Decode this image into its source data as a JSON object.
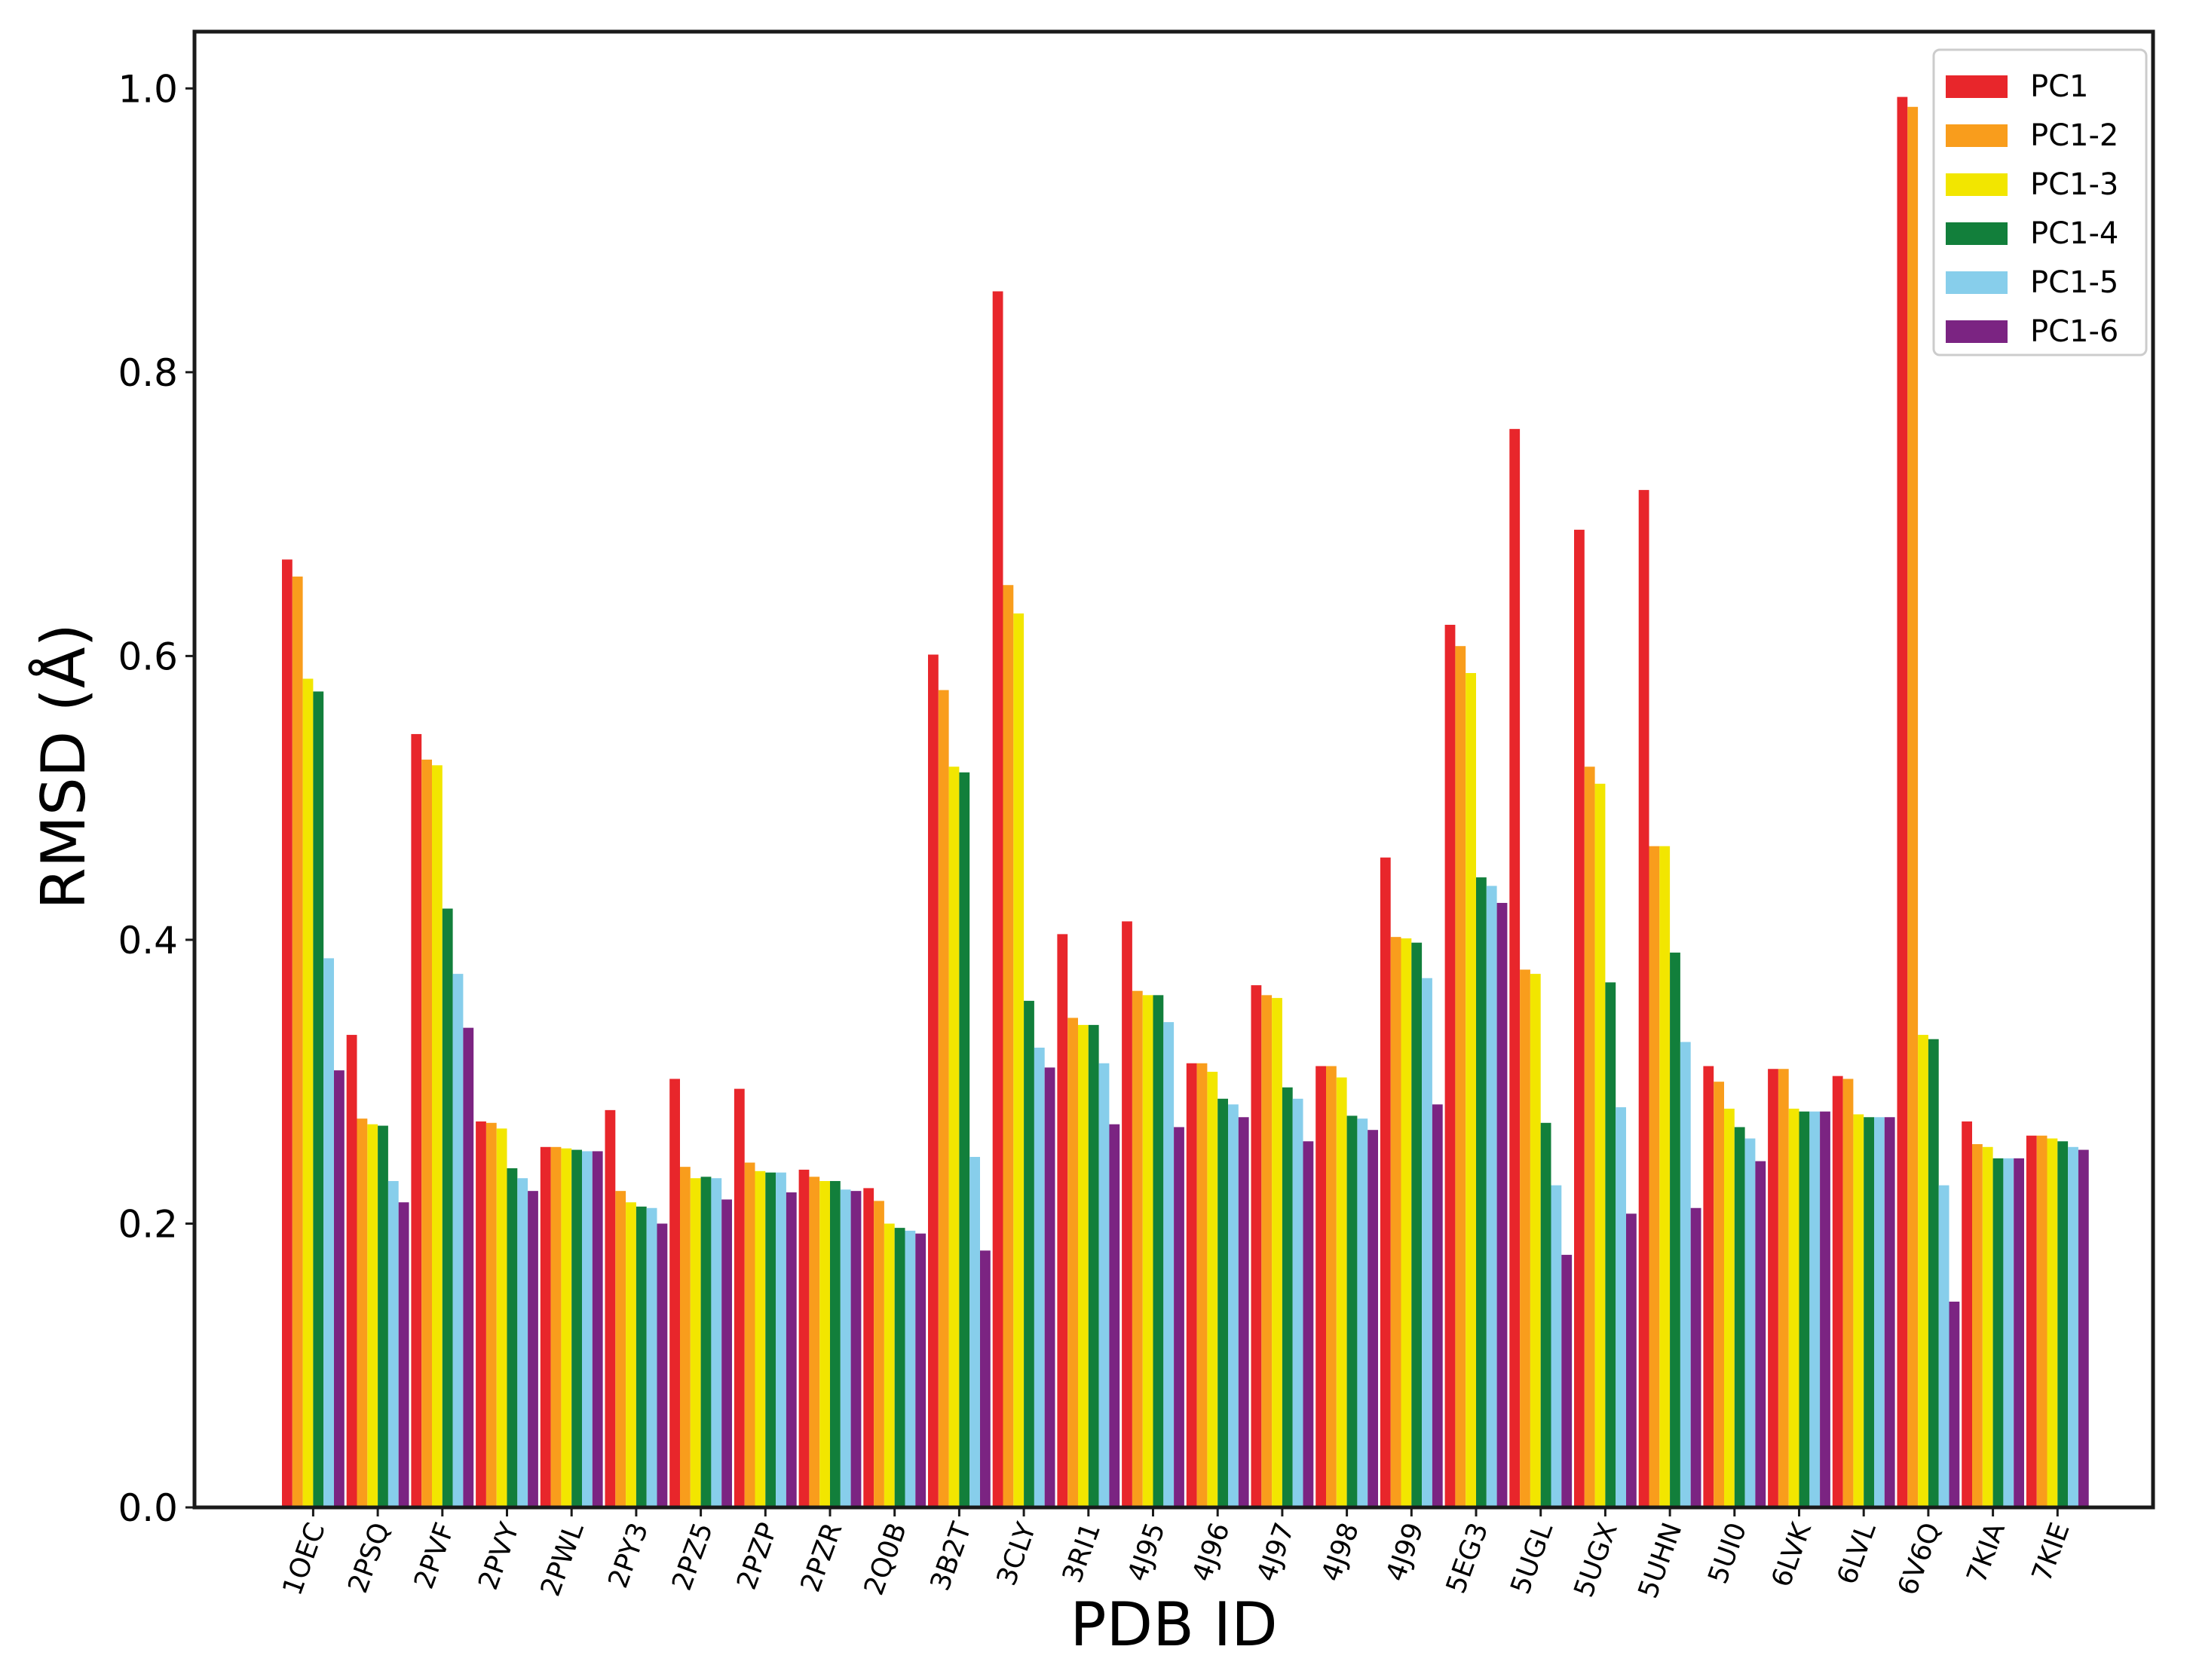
{
  "chart_data": {
    "type": "bar",
    "title": "",
    "xlabel": "PDB ID",
    "ylabel": "RMSD (Å)",
    "ylim": [
      0,
      1.04
    ],
    "yticks": [
      "0.0",
      "0.2",
      "0.4",
      "0.6",
      "0.8",
      "1.0"
    ],
    "legend_position": "top-right",
    "grid": false,
    "categories": [
      "1OEC",
      "2PSQ",
      "2PVF",
      "2PVY",
      "2PWL",
      "2PY3",
      "2PZ5",
      "2PZP",
      "2PZR",
      "2Q0B",
      "3B2T",
      "3CLY",
      "3RI1",
      "4J95",
      "4J96",
      "4J97",
      "4J98",
      "4J99",
      "5EG3",
      "5UGL",
      "5UGX",
      "5UHN",
      "5UI0",
      "6LVK",
      "6LVL",
      "6V6Q",
      "7KIA",
      "7KIE"
    ],
    "series": [
      {
        "name": "PC1",
        "color": "#e8262b",
        "values": [
          0.668,
          0.333,
          0.545,
          0.272,
          0.254,
          0.28,
          0.302,
          0.295,
          0.238,
          0.225,
          0.601,
          0.857,
          0.404,
          0.413,
          0.313,
          0.368,
          0.311,
          0.458,
          0.622,
          0.76,
          0.689,
          0.717,
          0.311,
          0.309,
          0.304,
          0.994,
          0.272,
          0.262
        ]
      },
      {
        "name": "PC1-2",
        "color": "#f99d1c",
        "values": [
          0.656,
          0.274,
          0.527,
          0.271,
          0.254,
          0.223,
          0.24,
          0.243,
          0.233,
          0.216,
          0.576,
          0.65,
          0.345,
          0.364,
          0.313,
          0.361,
          0.311,
          0.402,
          0.607,
          0.379,
          0.522,
          0.466,
          0.3,
          0.309,
          0.302,
          0.987,
          0.256,
          0.262
        ]
      },
      {
        "name": "PC1-3",
        "color": "#f2e600",
        "values": [
          0.584,
          0.27,
          0.523,
          0.267,
          0.253,
          0.215,
          0.232,
          0.237,
          0.23,
          0.2,
          0.522,
          0.63,
          0.34,
          0.361,
          0.307,
          0.359,
          0.303,
          0.401,
          0.588,
          0.376,
          0.51,
          0.466,
          0.281,
          0.281,
          0.277,
          0.333,
          0.254,
          0.26
        ]
      },
      {
        "name": "PC1-4",
        "color": "#127f3b",
        "values": [
          0.575,
          0.269,
          0.422,
          0.239,
          0.252,
          0.212,
          0.233,
          0.236,
          0.23,
          0.197,
          0.518,
          0.357,
          0.34,
          0.361,
          0.288,
          0.296,
          0.276,
          0.398,
          0.444,
          0.271,
          0.37,
          0.391,
          0.268,
          0.279,
          0.275,
          0.33,
          0.246,
          0.258
        ]
      },
      {
        "name": "PC1-5",
        "color": "#87ceeb",
        "values": [
          0.387,
          0.23,
          0.376,
          0.232,
          0.251,
          0.211,
          0.232,
          0.236,
          0.224,
          0.195,
          0.247,
          0.324,
          0.313,
          0.342,
          0.284,
          0.288,
          0.274,
          0.373,
          0.438,
          0.227,
          0.282,
          0.328,
          0.26,
          0.279,
          0.275,
          0.227,
          0.246,
          0.254
        ]
      },
      {
        "name": "PC1-6",
        "color": "#7b2482",
        "values": [
          0.308,
          0.215,
          0.338,
          0.223,
          0.251,
          0.2,
          0.217,
          0.222,
          0.223,
          0.193,
          0.181,
          0.31,
          0.27,
          0.268,
          0.275,
          0.258,
          0.266,
          0.284,
          0.426,
          0.178,
          0.207,
          0.211,
          0.244,
          0.279,
          0.275,
          0.145,
          0.246,
          0.252
        ]
      }
    ]
  }
}
